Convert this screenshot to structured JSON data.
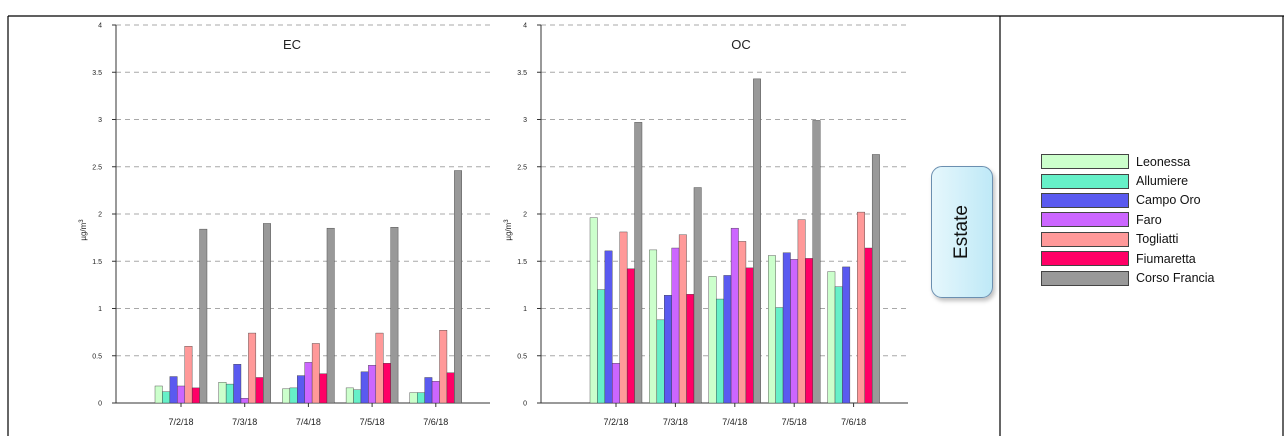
{
  "colors": {
    "series": [
      "#ccffcc",
      "#66f0c8",
      "#5a5af0",
      "#cc66ff",
      "#ff9999",
      "#ff0066",
      "#999999"
    ]
  },
  "season_label": "Estate",
  "chart_data": [
    {
      "type": "bar",
      "title": "EC",
      "ylabel": "µg/m3",
      "ylim": [
        0,
        4
      ],
      "yticks": [
        "0",
        "0.5",
        "1",
        "1.5",
        "2",
        "2.5",
        "3",
        "3.5",
        "4"
      ],
      "grid": true,
      "categories": [
        "7/2/18",
        "7/3/18",
        "7/4/18",
        "7/5/18",
        "7/6/18"
      ],
      "series": [
        {
          "name": "Leonessa",
          "values": [
            0.18,
            0.22,
            0.15,
            0.16,
            0.11
          ]
        },
        {
          "name": "Allumiere",
          "values": [
            0.12,
            0.2,
            0.16,
            0.14,
            0.11
          ]
        },
        {
          "name": "Campo Oro",
          "values": [
            0.28,
            0.41,
            0.29,
            0.33,
            0.27
          ]
        },
        {
          "name": "Faro",
          "values": [
            0.18,
            0.05,
            0.43,
            0.4,
            0.23
          ]
        },
        {
          "name": "Togliatti",
          "values": [
            0.6,
            0.74,
            0.63,
            0.74,
            0.77
          ]
        },
        {
          "name": "Fiumaretta",
          "values": [
            0.16,
            0.27,
            0.31,
            0.42,
            0.32
          ]
        },
        {
          "name": "Corso Francia",
          "values": [
            1.84,
            1.9,
            1.85,
            1.86,
            2.46
          ]
        }
      ]
    },
    {
      "type": "bar",
      "title": "OC",
      "ylabel": "µg/m3",
      "ylim": [
        0,
        4
      ],
      "yticks": [
        "0",
        "0.5",
        "1",
        "1.5",
        "2",
        "2.5",
        "3",
        "3.5",
        "4"
      ],
      "grid": true,
      "categories": [
        "7/2/18",
        "7/3/18",
        "7/4/18",
        "7/5/18",
        "7/6/18"
      ],
      "series": [
        {
          "name": "Leonessa",
          "values": [
            1.96,
            1.62,
            1.34,
            1.56,
            1.39
          ]
        },
        {
          "name": "Allumiere",
          "values": [
            1.2,
            0.88,
            1.1,
            1.01,
            1.23
          ]
        },
        {
          "name": "Campo Oro",
          "values": [
            1.61,
            1.14,
            1.35,
            1.59,
            1.44
          ]
        },
        {
          "name": "Faro",
          "values": [
            0.42,
            1.64,
            1.85,
            1.52,
            0
          ]
        },
        {
          "name": "Togliatti",
          "values": [
            1.81,
            1.78,
            1.71,
            1.94,
            2.02
          ]
        },
        {
          "name": "Fiumaretta",
          "values": [
            1.42,
            1.15,
            1.43,
            1.53,
            1.64
          ]
        },
        {
          "name": "Corso Francia",
          "values": [
            2.97,
            2.28,
            3.43,
            2.99,
            2.63
          ]
        }
      ]
    }
  ]
}
